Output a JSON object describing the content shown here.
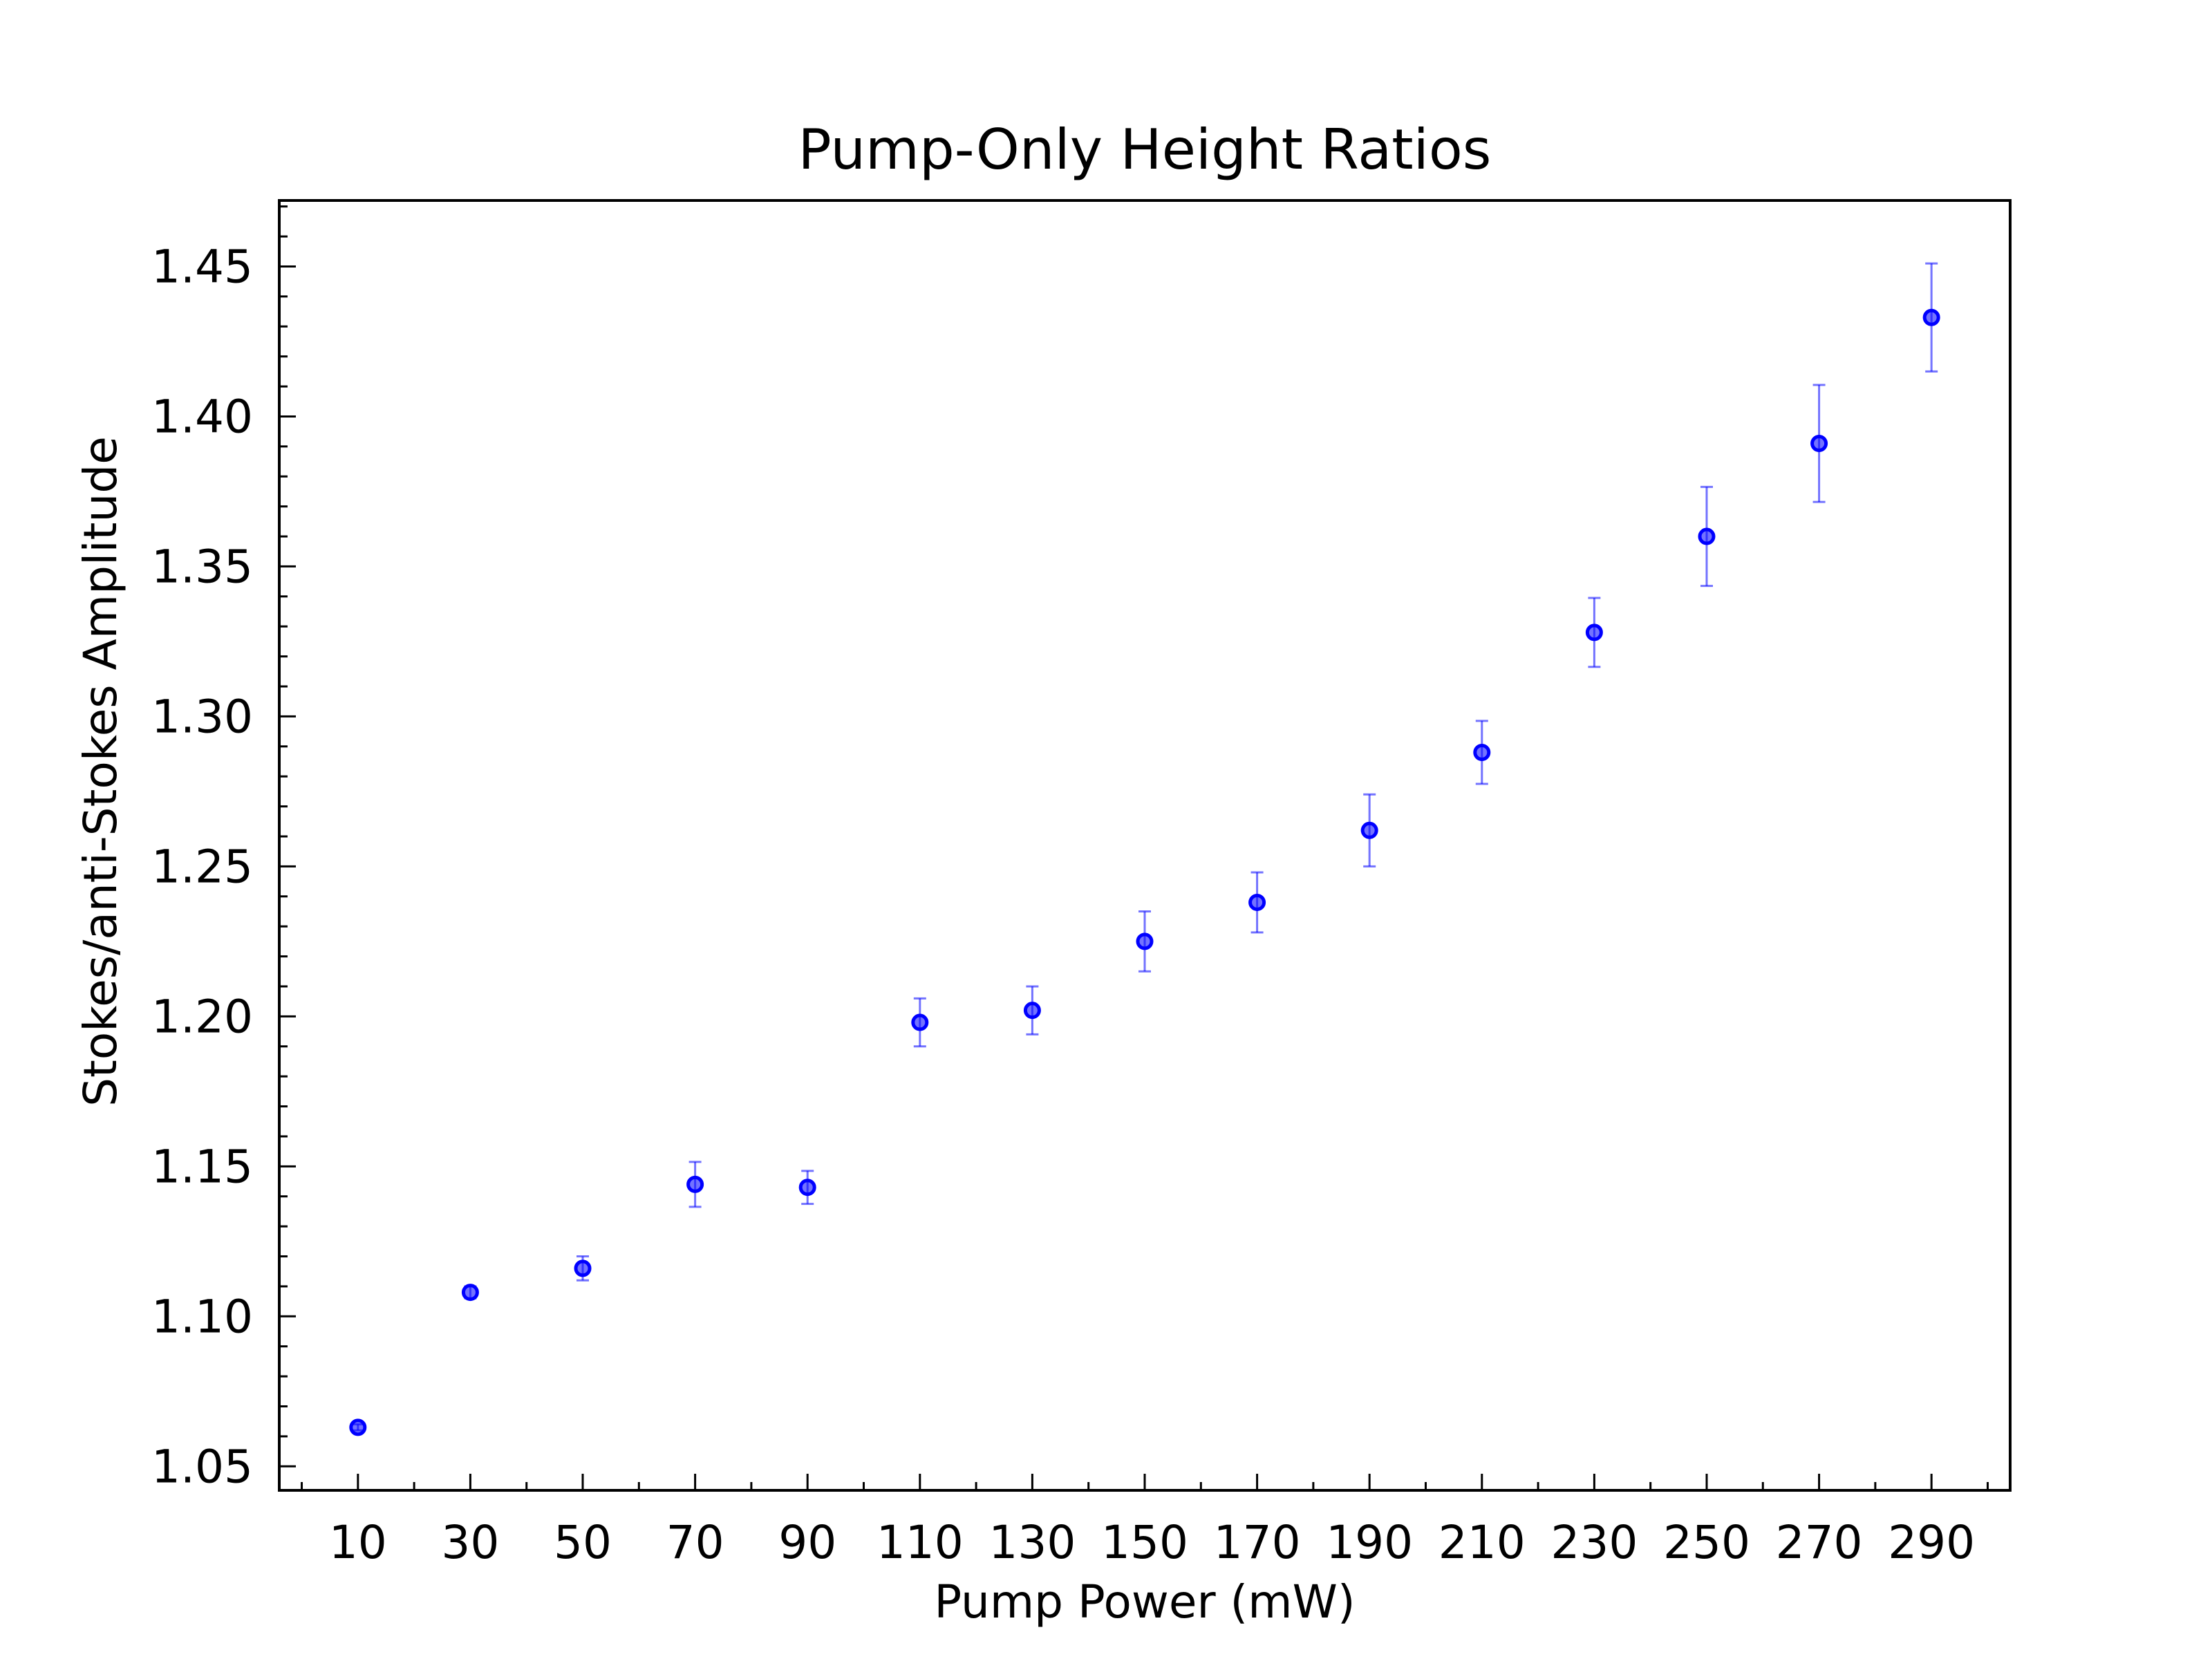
{
  "chart_data": {
    "type": "scatter",
    "title": "Pump-Only Height Ratios",
    "xlabel": "Pump Power (mW)",
    "ylabel": "Stokes/anti-Stokes Amplitude",
    "xlim": [
      -4,
      304
    ],
    "ylim": [
      1.042,
      1.472
    ],
    "xticks": [
      10,
      30,
      50,
      70,
      90,
      110,
      130,
      150,
      170,
      190,
      210,
      230,
      250,
      270,
      290
    ],
    "xtick_labels": [
      "10",
      "30",
      "50",
      "70",
      "90",
      "110",
      "130",
      "150",
      "170",
      "190",
      "210",
      "230",
      "250",
      "270",
      "290"
    ],
    "yticks": [
      1.05,
      1.1,
      1.15,
      1.2,
      1.25,
      1.3,
      1.35,
      1.4,
      1.45
    ],
    "ytick_labels": [
      "1.05",
      "1.10",
      "1.15",
      "1.20",
      "1.25",
      "1.30",
      "1.35",
      "1.40",
      "1.45"
    ],
    "grid": false,
    "series": [
      {
        "color": "#0000ff",
        "x": [
          10,
          30,
          50,
          70,
          90,
          110,
          130,
          150,
          170,
          190,
          210,
          230,
          250,
          270,
          290
        ],
        "y": [
          1.063,
          1.108,
          1.116,
          1.144,
          1.143,
          1.198,
          1.202,
          1.225,
          1.238,
          1.262,
          1.288,
          1.328,
          1.36,
          1.391,
          1.433
        ],
        "yerr": [
          0.001,
          0.002,
          0.004,
          0.0075,
          0.0055,
          0.008,
          0.008,
          0.01,
          0.01,
          0.012,
          0.0105,
          0.0115,
          0.0165,
          0.0195,
          0.018
        ]
      }
    ]
  }
}
